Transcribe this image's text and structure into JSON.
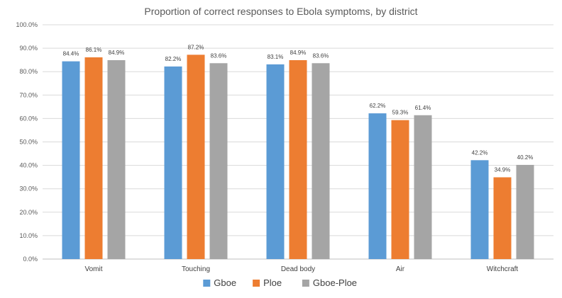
{
  "chart_data": {
    "type": "bar",
    "title": "Proportion of correct responses to Ebola symptoms, by district",
    "xlabel": "",
    "ylabel": "",
    "ylim": [
      0,
      100
    ],
    "yticks": [
      "0.0%",
      "10.0%",
      "20.0%",
      "30.0%",
      "40.0%",
      "50.0%",
      "60.0%",
      "70.0%",
      "80.0%",
      "90.0%",
      "100.0%"
    ],
    "categories": [
      "Vomit",
      "Touching",
      "Dead body",
      "Air",
      "Witchcraft"
    ],
    "series": [
      {
        "name": "Gboe",
        "color": "#5b9bd5",
        "values": [
          84.4,
          82.2,
          83.1,
          62.2,
          42.2
        ],
        "labels": [
          "84.4%",
          "82.2%",
          "83.1%",
          "62.2%",
          "42.2%"
        ]
      },
      {
        "name": "Ploe",
        "color": "#ed7d31",
        "values": [
          86.1,
          87.2,
          84.9,
          59.3,
          34.9
        ],
        "labels": [
          "86.1%",
          "87.2%",
          "84.9%",
          "59.3%",
          "34.9%"
        ]
      },
      {
        "name": "Gboe-Ploe",
        "color": "#a5a5a5",
        "values": [
          84.9,
          83.6,
          83.6,
          61.4,
          40.2
        ],
        "labels": [
          "84.9%",
          "83.6%",
          "83.6%",
          "61.4%",
          "40.2%"
        ]
      }
    ],
    "grid": true,
    "legend": "bottom"
  }
}
